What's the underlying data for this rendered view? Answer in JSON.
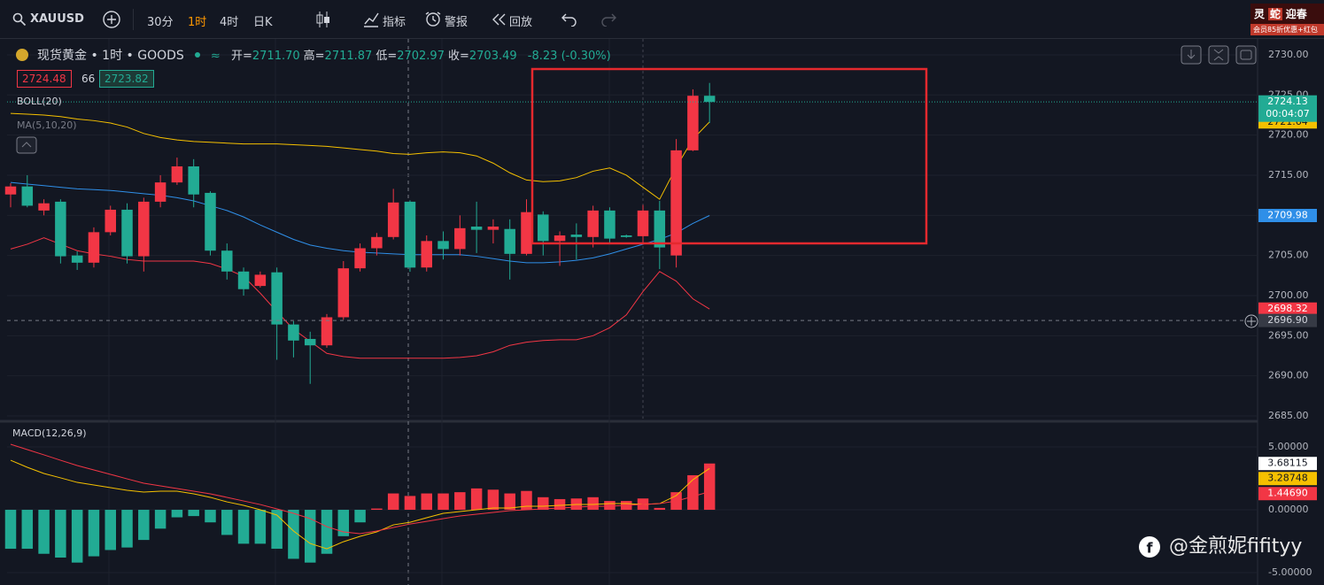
{
  "toolbar": {
    "symbol": "XAUUSD",
    "intervals": [
      "30分",
      "1时",
      "4时",
      "日K"
    ],
    "indicators": "指标",
    "alerts": "警报",
    "replay": "回放"
  },
  "promo": {
    "line1": [
      "灵",
      "蛇",
      "迎春"
    ],
    "line2": "会员85折优惠+红包"
  },
  "legend": {
    "title": "现货黄金 • 1时 • GOODS",
    "ohlc": [
      {
        "label": "开=",
        "value": "2711.70"
      },
      {
        "label": "高=",
        "value": "2711.87"
      },
      {
        "label": "低=",
        "value": "2702.97"
      },
      {
        "label": "收=",
        "value": "2703.49"
      }
    ],
    "change": "-8.23 (-0.30%)",
    "bid": "2724.48",
    "spread": "66",
    "ask": "2723.82",
    "boll": "BOLL(20)",
    "ma": "MA(5,10,20)"
  },
  "watermark": "@金煎妮fifityy",
  "chart_data": [
    {
      "type": "candlestick",
      "up_color": "#f23645",
      "down_color": "#22ab94",
      "grid": true,
      "ylim": [
        2684.45,
        2731.87
      ],
      "yticks": [
        {
          "value": 2685,
          "label": "2685.00"
        },
        {
          "value": 2690,
          "label": "2690.00"
        },
        {
          "value": 2695,
          "label": "2695.00"
        },
        {
          "value": 2700,
          "label": "2700.00"
        },
        {
          "value": 2705,
          "label": "2705.00"
        },
        {
          "value": 2710,
          "label": "2710.00"
        },
        {
          "value": 2715,
          "label": "2715.00"
        },
        {
          "value": 2720,
          "label": "2720.00"
        },
        {
          "value": 2725,
          "label": "2725.00"
        },
        {
          "value": 2730,
          "label": "2730.00"
        }
      ],
      "open": [
        2712.6,
        2713.6,
        2710.6,
        2711.7,
        2705.0,
        2704.1,
        2707.9,
        2710.7,
        2704.9,
        2711.7,
        2714.1,
        2716.1,
        2712.8,
        2705.6,
        2703.0,
        2701.2,
        2702.9,
        2696.4,
        2694.6,
        2693.8,
        2697.3,
        2703.4,
        2705.9,
        2707.3,
        2711.7,
        2703.5,
        2706.8,
        2705.8,
        2708.6,
        2708.2,
        2708.3,
        2705.2,
        2710.1,
        2706.8,
        2707.6,
        2707.3,
        2710.6,
        2707.5,
        2707.4,
        2710.6,
        2705.0,
        2718.1,
        2724.9
      ],
      "high": [
        2714.0,
        2715.0,
        2712.0,
        2712.0,
        2705.5,
        2708.5,
        2711.2,
        2711.5,
        2712.2,
        2715.0,
        2717.2,
        2717.0,
        2713.0,
        2706.5,
        2703.5,
        2703.0,
        2703.5,
        2696.8,
        2695.5,
        2697.7,
        2704.3,
        2706.5,
        2707.8,
        2713.3,
        2711.87,
        2707.5,
        2708.0,
        2710.0,
        2711.7,
        2709.5,
        2709.5,
        2712.0,
        2710.5,
        2708.0,
        2709.0,
        2711.2,
        2711.0,
        2707.6,
        2711.3,
        2711.8,
        2719.5,
        2725.7,
        2726.5
      ],
      "low": [
        2711.0,
        2711.0,
        2710.0,
        2704.0,
        2703.2,
        2703.5,
        2707.5,
        2704.0,
        2703.0,
        2711.0,
        2713.8,
        2711.0,
        2705.0,
        2702.0,
        2700.0,
        2701.0,
        2692.0,
        2692.3,
        2689.0,
        2693.5,
        2697.0,
        2703.0,
        2705.0,
        2707.0,
        2702.97,
        2703.0,
        2704.5,
        2705.0,
        2705.3,
        2706.5,
        2702.0,
        2705.0,
        2705.0,
        2703.7,
        2704.5,
        2706.0,
        2706.5,
        2707.2,
        2706.5,
        2703.3,
        2703.5,
        2718.0,
        2721.5
      ],
      "close": [
        2713.6,
        2711.2,
        2711.5,
        2704.9,
        2704.1,
        2707.9,
        2710.7,
        2704.9,
        2711.7,
        2714.1,
        2716.1,
        2712.6,
        2705.6,
        2703.0,
        2700.8,
        2702.6,
        2696.4,
        2694.4,
        2693.8,
        2697.3,
        2703.4,
        2705.9,
        2707.3,
        2711.6,
        2703.49,
        2706.8,
        2705.8,
        2708.4,
        2708.2,
        2708.6,
        2705.2,
        2710.4,
        2706.8,
        2707.5,
        2707.3,
        2710.6,
        2707.1,
        2707.3,
        2710.6,
        2706.0,
        2718.1,
        2724.9,
        2724.13
      ],
      "countdown": "00:04:07",
      "crosshair": {
        "value": 2696.9,
        "label": "2696.90"
      },
      "series": [
        {
          "color": "#f5c000",
          "values": [
            2722.7,
            2722.6,
            2722.5,
            2722.3,
            2722.0,
            2721.8,
            2721.5,
            2721.0,
            2720.2,
            2719.7,
            2719.4,
            2719.2,
            2719.1,
            2719.0,
            2718.9,
            2718.9,
            2718.9,
            2718.8,
            2718.7,
            2718.6,
            2718.4,
            2718.2,
            2718.0,
            2717.7,
            2717.6,
            2717.8,
            2717.9,
            2717.8,
            2717.4,
            2716.5,
            2715.3,
            2714.4,
            2714.2,
            2714.3,
            2714.7,
            2715.5,
            2715.9,
            2715.0,
            2713.5,
            2712.0,
            2716.0,
            2719.5,
            2721.64
          ]
        },
        {
          "color": "#2f8fe8",
          "values": [
            2714.1,
            2713.9,
            2713.7,
            2713.5,
            2713.3,
            2713.2,
            2713.1,
            2712.9,
            2712.7,
            2712.5,
            2712.2,
            2711.8,
            2711.2,
            2710.6,
            2709.8,
            2708.8,
            2707.9,
            2707.0,
            2706.3,
            2705.9,
            2705.6,
            2705.4,
            2705.3,
            2705.2,
            2705.1,
            2705.1,
            2705.1,
            2705.1,
            2704.9,
            2704.6,
            2704.3,
            2704.1,
            2704.1,
            2704.2,
            2704.4,
            2704.7,
            2705.2,
            2705.8,
            2706.4,
            2707.0,
            2707.8,
            2709.0,
            2709.98
          ]
        },
        {
          "color": "#f23645",
          "values": [
            2705.8,
            2706.4,
            2707.2,
            2706.4,
            2705.6,
            2705.2,
            2704.9,
            2704.5,
            2704.3,
            2704.3,
            2704.3,
            2704.3,
            2704.0,
            2703.3,
            2702.4,
            2700.3,
            2698.0,
            2695.8,
            2694.3,
            2692.8,
            2692.4,
            2692.2,
            2692.2,
            2692.2,
            2692.2,
            2692.2,
            2692.2,
            2692.3,
            2692.5,
            2693.0,
            2693.8,
            2694.2,
            2694.4,
            2694.5,
            2694.5,
            2695.0,
            2696.0,
            2697.6,
            2700.5,
            2703.0,
            2701.8,
            2699.6,
            2698.32
          ]
        }
      ]
    },
    {
      "type": "macd",
      "title": "MACD(12,26,9)",
      "up_color": "#f23645",
      "down_color": "#22ab94",
      "grid": true,
      "ylim": [
        -5.56,
        6.9
      ],
      "yticks": [
        {
          "value": -5,
          "label": "-5.00000"
        },
        {
          "value": 0,
          "label": "0.00000"
        },
        {
          "value": 5,
          "label": "5.00000"
        }
      ],
      "histogram": [
        -3.1,
        -3.1,
        -3.5,
        -3.8,
        -4.2,
        -3.7,
        -3.2,
        -3.0,
        -2.4,
        -1.5,
        -0.6,
        -0.5,
        -1.0,
        -2.0,
        -2.7,
        -2.7,
        -3.1,
        -3.9,
        -4.2,
        -3.5,
        -2.1,
        -1.0,
        0.1,
        1.3,
        1.1,
        1.3,
        1.3,
        1.4,
        1.7,
        1.6,
        1.3,
        1.5,
        1.0,
        0.85,
        0.9,
        1.0,
        0.7,
        0.7,
        0.9,
        0.15,
        1.4,
        2.75,
        3.68115
      ],
      "series": [
        {
          "color": "#f5c000",
          "values": [
            3.94,
            3.38,
            2.89,
            2.54,
            2.18,
            1.97,
            1.76,
            1.55,
            1.41,
            1.48,
            1.48,
            1.27,
            0.99,
            0.63,
            0.35,
            0,
            -0.42,
            -1.69,
            -2.68,
            -3.1,
            -2.54,
            -2.11,
            -1.76,
            -1.2,
            -0.99,
            -0.63,
            -0.28,
            -0.14,
            0,
            0.14,
            0.14,
            0.28,
            0.28,
            0.35,
            0.42,
            0.42,
            0.49,
            0.49,
            0.42,
            0.49,
            1.13,
            2.39,
            3.28748
          ]
        },
        {
          "color": "#f23645",
          "values": [
            5.21,
            4.79,
            4.37,
            3.94,
            3.52,
            3.17,
            2.82,
            2.46,
            2.11,
            1.9,
            1.69,
            1.48,
            1.27,
            0.99,
            0.7,
            0.42,
            0.07,
            -0.28,
            -0.7,
            -1.34,
            -1.76,
            -1.9,
            -1.69,
            -1.41,
            -1.13,
            -0.92,
            -0.7,
            -0.49,
            -0.35,
            -0.21,
            -0.07,
            0,
            0.07,
            0.14,
            0.21,
            0.28,
            0.28,
            0.35,
            0.42,
            0.49,
            0.7,
            1.06,
            1.4469
          ],
          "value_labels": [
            null,
            null,
            null,
            null,
            null,
            null,
            null,
            null,
            null,
            null,
            null,
            null,
            null,
            null,
            null,
            null,
            null,
            null,
            null,
            null,
            null,
            null,
            null,
            null,
            null,
            null,
            null,
            null,
            null,
            null,
            null,
            null,
            null,
            null,
            null,
            null,
            null,
            null,
            null,
            null,
            null,
            null,
            "1.44690"
          ]
        }
      ]
    }
  ]
}
